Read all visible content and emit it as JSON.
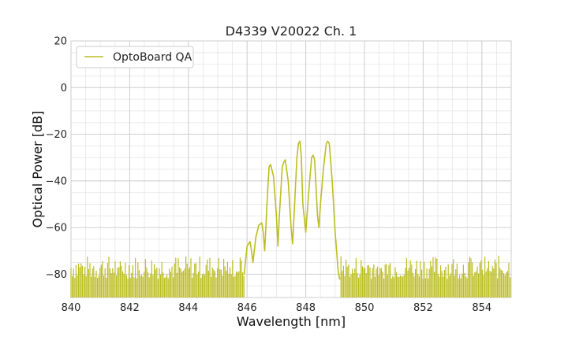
{
  "chart_data": {
    "type": "line",
    "title": "D4339 V20022 Ch. 1",
    "xlabel": "Wavelength [nm]",
    "ylabel": "Optical Power [dB]",
    "xlim": [
      840,
      855
    ],
    "ylim": [
      -90,
      20
    ],
    "xticks": [
      840,
      842,
      844,
      846,
      848,
      850,
      852,
      854
    ],
    "yticks": [
      20,
      0,
      -20,
      -40,
      -60,
      -80
    ],
    "xtick_labels": [
      "840",
      "842",
      "844",
      "846",
      "848",
      "850",
      "852",
      "854"
    ],
    "ytick_labels": [
      "20",
      "0",
      "−20",
      "−40",
      "−60",
      "−80"
    ],
    "grid": true,
    "minor_grid": true,
    "legend_position": "top-left",
    "noise_floor": {
      "x_range_left": [
        840,
        845.9
      ],
      "x_range_right": [
        849.2,
        855
      ],
      "top_min": -82,
      "top_max": -72,
      "floor": -90
    },
    "series": [
      {
        "name": "OptoBoard QA",
        "color": "#bcbd22",
        "x": [
          845.9,
          846.0,
          846.1,
          846.15,
          846.2,
          846.3,
          846.4,
          846.5,
          846.55,
          846.6,
          846.7,
          846.75,
          846.8,
          846.9,
          847.0,
          847.05,
          847.1,
          847.2,
          847.25,
          847.3,
          847.4,
          847.5,
          847.55,
          847.6,
          847.7,
          847.75,
          847.8,
          847.85,
          847.9,
          848.0,
          848.1,
          848.2,
          848.25,
          848.3,
          848.4,
          848.45,
          848.5,
          848.6,
          848.7,
          848.75,
          848.8,
          848.9,
          849.0,
          849.05,
          849.1,
          849.15,
          849.2
        ],
        "values": [
          -80,
          -68,
          -66,
          -70,
          -75,
          -64,
          -59,
          -58,
          -62,
          -70,
          -45,
          -34,
          -33,
          -38,
          -55,
          -68,
          -55,
          -34,
          -32,
          -31,
          -40,
          -60,
          -67,
          -55,
          -30,
          -24,
          -23,
          -30,
          -50,
          -62,
          -45,
          -30,
          -29,
          -31,
          -55,
          -60,
          -50,
          -35,
          -24,
          -23,
          -24,
          -40,
          -62,
          -70,
          -78,
          -82,
          -82
        ]
      }
    ]
  }
}
